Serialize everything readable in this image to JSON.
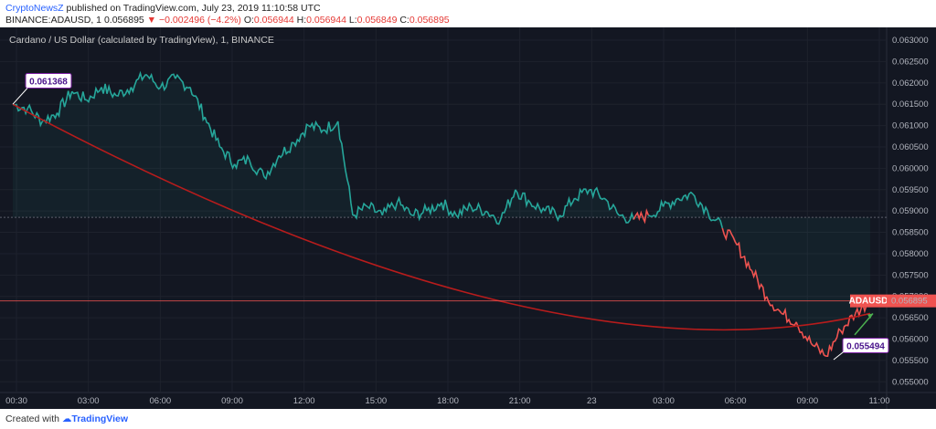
{
  "header": {
    "author": "CryptoNewsZ",
    "published": "published on TradingView.com, July 23, 2019 11:10:58 UTC",
    "symbol": "BINANCE:ADAUSD, 1",
    "last": "0.056895",
    "arrow": "▼",
    "change": "−0.002496 (−4.2%)",
    "o_label": "O:",
    "o_value": "0.056944",
    "h_label": "H:",
    "h_value": "0.056944",
    "l_label": "L:",
    "l_value": "0.056849",
    "c_label": "C:",
    "c_value": "0.056895"
  },
  "chart_data": {
    "type": "line",
    "title": "Cardano / US Dollar (calculated by TradingView), 1, BINANCE",
    "x_ticks": [
      "00:30",
      "03:00",
      "06:00",
      "09:00",
      "12:00",
      "15:00",
      "18:00",
      "21:00",
      "23",
      "03:00",
      "06:00",
      "09:00",
      "11:00"
    ],
    "y_ticks": [
      "0.063000",
      "0.062500",
      "0.062000",
      "0.061500",
      "0.061000",
      "0.060500",
      "0.060000",
      "0.059500",
      "0.059000",
      "0.058500",
      "0.058000",
      "0.057500",
      "0.057000",
      "0.056500",
      "0.056000",
      "0.055500",
      "0.055000"
    ],
    "ylim": [
      0.05475,
      0.0633
    ],
    "colors": {
      "up": "#26a69a",
      "down": "#ef5350",
      "arc": "#b71c1c",
      "current": "#ef5350"
    },
    "series": [
      {
        "values": [
          0.0615,
          0.0614,
          0.0611,
          0.0613,
          0.0618,
          0.0616,
          0.0619,
          0.0617,
          0.0619,
          0.0622,
          0.0619,
          0.0621,
          0.0619,
          0.0612,
          0.0605,
          0.0601,
          0.0602,
          0.0598,
          0.0603,
          0.0606,
          0.061,
          0.0609,
          0.0611,
          0.0589,
          0.0591,
          0.0589,
          0.0592,
          0.0589,
          0.059,
          0.0592,
          0.0589,
          0.0591,
          0.059,
          0.0588,
          0.0595,
          0.0592,
          0.059,
          0.0589,
          0.0593,
          0.0595,
          0.0593,
          0.0589,
          0.0588,
          0.0589,
          0.0591,
          0.0593,
          0.0594,
          0.059,
          0.0586,
          0.0582,
          0.0576,
          0.057,
          0.0566,
          0.0564,
          0.0559,
          0.0556,
          0.0562,
          0.0566,
          0.0569
        ]
      }
    ],
    "annotations": {
      "high_label": "0.061368",
      "low_label": "0.055494",
      "current_symbol": "ADAUSD",
      "current_value": "0.056895",
      "reference_level": 0.05885
    }
  },
  "footer": {
    "prefix": "Created with",
    "brand": "TradingView"
  }
}
